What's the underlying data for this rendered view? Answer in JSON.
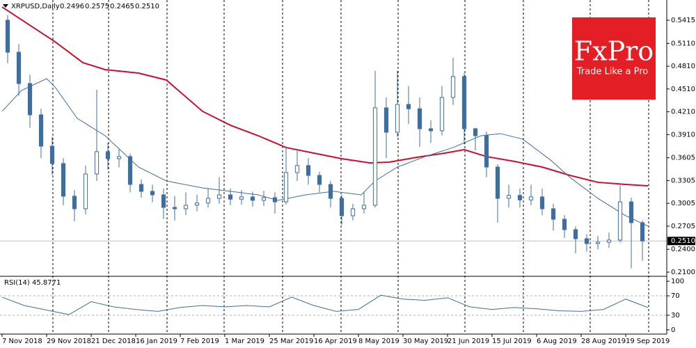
{
  "chart_data": [
    {
      "type": "candlestick",
      "title": "XRPUSD,Daily",
      "header_values": [
        "0.2496",
        "0.2575",
        "0.2465",
        "0.2510"
      ],
      "color": "#3d6e9e",
      "x": [
        2,
        6,
        10,
        14,
        18,
        22,
        26,
        30,
        34,
        38,
        42,
        46,
        50,
        54,
        58,
        62,
        66,
        70,
        74,
        78,
        82,
        86,
        90,
        94,
        98,
        102,
        106,
        110,
        114,
        118,
        122,
        126,
        130,
        134,
        138,
        142,
        146,
        150,
        154,
        158,
        162,
        166,
        170,
        174,
        178,
        182,
        186,
        190,
        194,
        198,
        202,
        206,
        210,
        214,
        218,
        222,
        226,
        230
      ],
      "open": [
        0.5415,
        0.4994,
        0.4582,
        0.417,
        0.3758,
        0.3529,
        0.3099,
        0.2934,
        0.3392,
        0.3685,
        0.3593,
        0.3621,
        0.3254,
        0.3163,
        0.3117,
        0.2952,
        0.2934,
        0.298,
        0.301,
        0.3071,
        0.3117,
        0.306,
        0.309,
        0.3045,
        0.308,
        0.3025,
        0.341,
        0.3502,
        0.3373,
        0.3254,
        0.3071,
        0.2842,
        0.2934,
        0.298,
        0.4262,
        0.3941,
        0.4307,
        0.425,
        0.3987,
        0.396,
        0.4399,
        0.4674,
        0.3987,
        0.3895,
        0.3483,
        0.3071,
        0.311,
        0.305,
        0.309,
        0.2934,
        0.2796,
        0.2659,
        0.254,
        0.2476,
        0.2494,
        0.2522,
        0.3025,
        0.2751
      ],
      "high": [
        0.548,
        0.51,
        0.47,
        0.425,
        0.388,
        0.36,
        0.318,
        0.35,
        0.45,
        0.38,
        0.372,
        0.366,
        0.332,
        0.325,
        0.32,
        0.31,
        0.315,
        0.312,
        0.32,
        0.335,
        0.32,
        0.318,
        0.316,
        0.317,
        0.315,
        0.375,
        0.372,
        0.36,
        0.342,
        0.33,
        0.312,
        0.3,
        0.315,
        0.475,
        0.44,
        0.475,
        0.455,
        0.44,
        0.41,
        0.455,
        0.492,
        0.472,
        0.4,
        0.395,
        0.352,
        0.325,
        0.32,
        0.325,
        0.32,
        0.3,
        0.285,
        0.27,
        0.26,
        0.258,
        0.262,
        0.324,
        0.308,
        0.278
      ],
      "low": [
        0.485,
        0.442,
        0.4,
        0.36,
        0.338,
        0.298,
        0.277,
        0.286,
        0.33,
        0.345,
        0.348,
        0.315,
        0.308,
        0.302,
        0.28,
        0.278,
        0.285,
        0.29,
        0.295,
        0.3,
        0.298,
        0.299,
        0.296,
        0.297,
        0.287,
        0.299,
        0.33,
        0.325,
        0.315,
        0.295,
        0.272,
        0.278,
        0.287,
        0.295,
        0.36,
        0.388,
        0.405,
        0.375,
        0.38,
        0.39,
        0.43,
        0.378,
        0.37,
        0.335,
        0.275,
        0.295,
        0.295,
        0.298,
        0.285,
        0.265,
        0.255,
        0.235,
        0.237,
        0.24,
        0.242,
        0.249,
        0.215,
        0.225
      ],
      "close": [
        0.4994,
        0.4582,
        0.417,
        0.3758,
        0.3529,
        0.3099,
        0.2934,
        0.3392,
        0.3685,
        0.3593,
        0.3621,
        0.3254,
        0.3163,
        0.3117,
        0.2952,
        0.2934,
        0.298,
        0.301,
        0.3071,
        0.3117,
        0.306,
        0.309,
        0.3045,
        0.308,
        0.3025,
        0.341,
        0.3502,
        0.3373,
        0.3254,
        0.3071,
        0.2842,
        0.2934,
        0.298,
        0.4262,
        0.3941,
        0.4307,
        0.425,
        0.3987,
        0.396,
        0.4399,
        0.4674,
        0.3987,
        0.3895,
        0.3483,
        0.3071,
        0.311,
        0.305,
        0.309,
        0.2934,
        0.2796,
        0.2659,
        0.254,
        0.2476,
        0.2494,
        0.2522,
        0.3025,
        0.2751,
        0.251
      ],
      "overlays": [
        {
          "color": "#c8102e",
          "x": [
            0,
            19,
            29,
            37,
            49,
            59,
            72,
            82,
            92,
            102,
            112,
            122,
            132,
            139,
            149,
            159,
            166,
            174,
            184,
            194,
            204,
            214,
            224,
            232
          ],
          "values": [
            0.5589,
            0.5132,
            0.4857,
            0.4765,
            0.4719,
            0.4628,
            0.4216,
            0.4033,
            0.3895,
            0.374,
            0.3666,
            0.3593,
            0.3538,
            0.3547,
            0.3611,
            0.3666,
            0.3712,
            0.3621,
            0.3557,
            0.3483,
            0.3373,
            0.3282,
            0.3254,
            0.3236
          ]
        },
        {
          "color": "#3d6e9e",
          "x": [
            0,
            7,
            16,
            19,
            27,
            37,
            49,
            59,
            72,
            82,
            92,
            99,
            109,
            119,
            129,
            134,
            142,
            152,
            162,
            172,
            179,
            187,
            197,
            204,
            214,
            224,
            232
          ],
          "values": [
            0.4216,
            0.4491,
            0.4646,
            0.4536,
            0.4124,
            0.3895,
            0.3483,
            0.33,
            0.3208,
            0.3163,
            0.3117,
            0.3044,
            0.3117,
            0.3163,
            0.3117,
            0.33,
            0.3483,
            0.3621,
            0.374,
            0.3895,
            0.3923,
            0.385,
            0.3575,
            0.3346,
            0.3071,
            0.2842,
            0.2705
          ]
        }
      ],
      "last_price": {
        "value": 0.251,
        "label": "0.2510"
      },
      "xlim": [
        -0.75,
        238.75
      ],
      "ylim": [
        0.2045,
        0.5681
      ],
      "yticks": [
        0.5415,
        {
          "value": 0.511,
          "label": "0.5110"
        },
        {
          "value": 0.481,
          "label": "0.4810"
        },
        {
          "value": 0.451,
          "label": "0.4510"
        },
        {
          "value": 0.421,
          "label": "0.4210"
        },
        {
          "value": 0.391,
          "label": "0.3910"
        },
        0.3605,
        0.3305,
        0.3005,
        0.2705,
        {
          "value": 0.24,
          "label": "0.2400"
        },
        {
          "value": 0.21,
          "label": "0.2100"
        }
      ],
      "xticks": [
        {
          "value": 0,
          "label": "7 Nov 2018"
        },
        {
          "value": 16,
          "label": "29 Nov 2018"
        },
        {
          "value": 32,
          "label": "21 Dec 2018"
        },
        {
          "value": 48,
          "label": "16 Jan 2019"
        },
        {
          "value": 64,
          "label": "7 Feb 2019"
        },
        {
          "value": 80,
          "label": "1 Mar 2019"
        },
        {
          "value": 96,
          "label": "25 Mar 2019"
        },
        {
          "value": 112,
          "label": "16 Apr 2019"
        },
        {
          "value": 128,
          "label": "8 May 2019"
        },
        {
          "value": 144,
          "label": "30 May 2019"
        },
        {
          "value": 160,
          "label": "21 Jun 2019"
        },
        {
          "value": 176,
          "label": "15 Jul 2019"
        },
        {
          "value": 192,
          "label": "6 Aug 2019"
        },
        {
          "value": 208,
          "label": "28 Aug 2019"
        },
        {
          "value": 224,
          "label": "19 Sep 2019"
        }
      ],
      "xgrid": [
        18.25,
        38.25,
        59.25,
        79.75,
        100.75,
        121.75,
        142.25,
        166.25,
        187.25,
        211.25,
        232.25
      ],
      "logo": {
        "brand": "FxPro",
        "tagline": "Trade Like a Pro",
        "color": "#e31e24"
      }
    },
    {
      "type": "line",
      "title": "RSI(14) 45.8771",
      "color": "#3d6e9e",
      "x": [
        0,
        8,
        16,
        24,
        32,
        40,
        48,
        56,
        64,
        72,
        80,
        88,
        96,
        104,
        112,
        120,
        128,
        136,
        144,
        152,
        160,
        168,
        176,
        184,
        192,
        200,
        208,
        216,
        224,
        232
      ],
      "values": [
        67.3,
        50.0,
        40.7,
        31.3,
        58.0,
        47.3,
        42.0,
        38.0,
        46.0,
        50.0,
        47.3,
        50.0,
        47.3,
        67.3,
        50.0,
        38.0,
        42.0,
        71.3,
        63.3,
        60.7,
        66.0,
        47.3,
        42.0,
        46.0,
        43.3,
        39.3,
        38.0,
        42.0,
        63.3,
        45.9
      ],
      "levels": [
        70,
        30
      ],
      "xlim": [
        -0.75,
        238.75
      ],
      "ylim": [
        -8.8,
        108.8
      ],
      "yticks": [
        100,
        70,
        30,
        0
      ]
    }
  ]
}
